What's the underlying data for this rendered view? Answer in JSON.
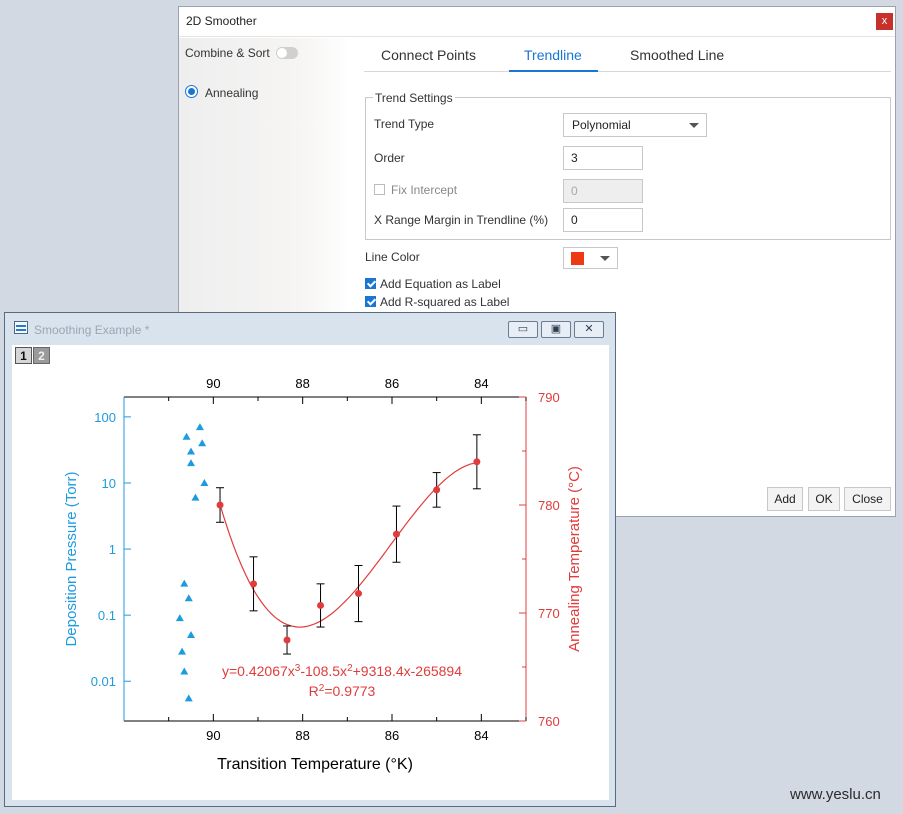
{
  "dialog": {
    "title": "2D Smoother",
    "close_label": "x",
    "sidebar": {
      "combine_sort_label": "Combine & Sort",
      "combine_sort_on": false,
      "item_label": "Annealing"
    },
    "tabs": [
      {
        "label": "Connect Points",
        "active": false
      },
      {
        "label": "Trendline",
        "active": true
      },
      {
        "label": "Smoothed Line",
        "active": false
      }
    ],
    "trend_settings": {
      "group_label": "Trend Settings",
      "trend_type_label": "Trend Type",
      "trend_type_value": "Polynomial",
      "order_label": "Order",
      "order_value": "3",
      "fix_intercept_label": "Fix Intercept",
      "fix_intercept_checked": false,
      "fix_intercept_value": "0",
      "x_range_label": "X Range Margin in Trendline (%)",
      "x_range_value": "0"
    },
    "line_color_label": "Line Color",
    "line_color": "#ee3a12",
    "add_equation_label": "Add Equation as Label",
    "add_equation_checked": true,
    "add_rsquared_label": "Add R-squared as Label",
    "add_rsquared_checked": true,
    "buttons": {
      "add": "Add",
      "ok": "OK",
      "close": "Close"
    }
  },
  "graph_window": {
    "title": "Smoothing Example *",
    "layer_tabs": [
      "1",
      "2"
    ],
    "window_buttons": {
      "minimize": "▭",
      "restore": "▣",
      "close": "✕"
    }
  },
  "chart_data": {
    "type": "scatter",
    "x_axis": {
      "label": "Transition Temperature (°K)",
      "range": [
        92,
        83
      ],
      "ticks": [
        "90",
        "88",
        "86",
        "84"
      ],
      "tick_values": [
        90,
        88,
        86,
        84
      ]
    },
    "y_left": {
      "label": "Deposition Pressure (Torr)",
      "scale": "log",
      "range": [
        0.0025,
        200
      ],
      "ticks": [
        "100",
        "10",
        "1",
        "0.1",
        "0.01"
      ],
      "tick_values": [
        100,
        10,
        1,
        0.1,
        0.01
      ],
      "color": "#1e9be0"
    },
    "y_right": {
      "label": "Annealing Temperature (°C)",
      "range": [
        760,
        790
      ],
      "ticks": [
        "790",
        "780",
        "770",
        "760"
      ],
      "tick_values": [
        790,
        780,
        770,
        760
      ],
      "color": "#e03c3c"
    },
    "series": [
      {
        "marker": "triangle",
        "color": "#1e9be0",
        "axis": "left",
        "points": [
          [
            90.6,
            50
          ],
          [
            90.3,
            70
          ],
          [
            90.5,
            30
          ],
          [
            90.25,
            40
          ],
          [
            90.5,
            20
          ],
          [
            90.2,
            10
          ],
          [
            90.4,
            6
          ],
          [
            90.65,
            0.3
          ],
          [
            90.55,
            0.18
          ],
          [
            90.75,
            0.09
          ],
          [
            90.5,
            0.05
          ],
          [
            90.7,
            0.028
          ],
          [
            90.65,
            0.014
          ],
          [
            90.55,
            0.0055
          ]
        ]
      },
      {
        "marker": "circle",
        "color": "#e03c3c",
        "axis": "right",
        "points": [
          {
            "x": 89.85,
            "y": 780.0,
            "err": 1.6
          },
          {
            "x": 89.1,
            "y": 772.7,
            "err": 2.5
          },
          {
            "x": 88.35,
            "y": 767.5,
            "err": 1.3
          },
          {
            "x": 87.6,
            "y": 770.7,
            "err": 2.0
          },
          {
            "x": 86.75,
            "y": 771.8,
            "err": 2.6
          },
          {
            "x": 85.9,
            "y": 777.3,
            "err": 2.6
          },
          {
            "x": 85.0,
            "y": 781.4,
            "err": 1.6
          },
          {
            "x": 84.1,
            "y": 784.0,
            "err": 2.5
          }
        ]
      }
    ],
    "trendline": {
      "type": "polynomial",
      "order": 3,
      "color": "#e03c3c"
    },
    "annotation": {
      "equation": {
        "prefix": "y=0.42067x",
        "sup1": "3",
        "mid": "-108.5x",
        "sup2": "2",
        "suffix": "+9318.4x-265894"
      },
      "r2": {
        "prefix": "R",
        "sup": "2",
        "suffix": "=0.9773"
      }
    }
  },
  "watermark": "www.yeslu.cn"
}
